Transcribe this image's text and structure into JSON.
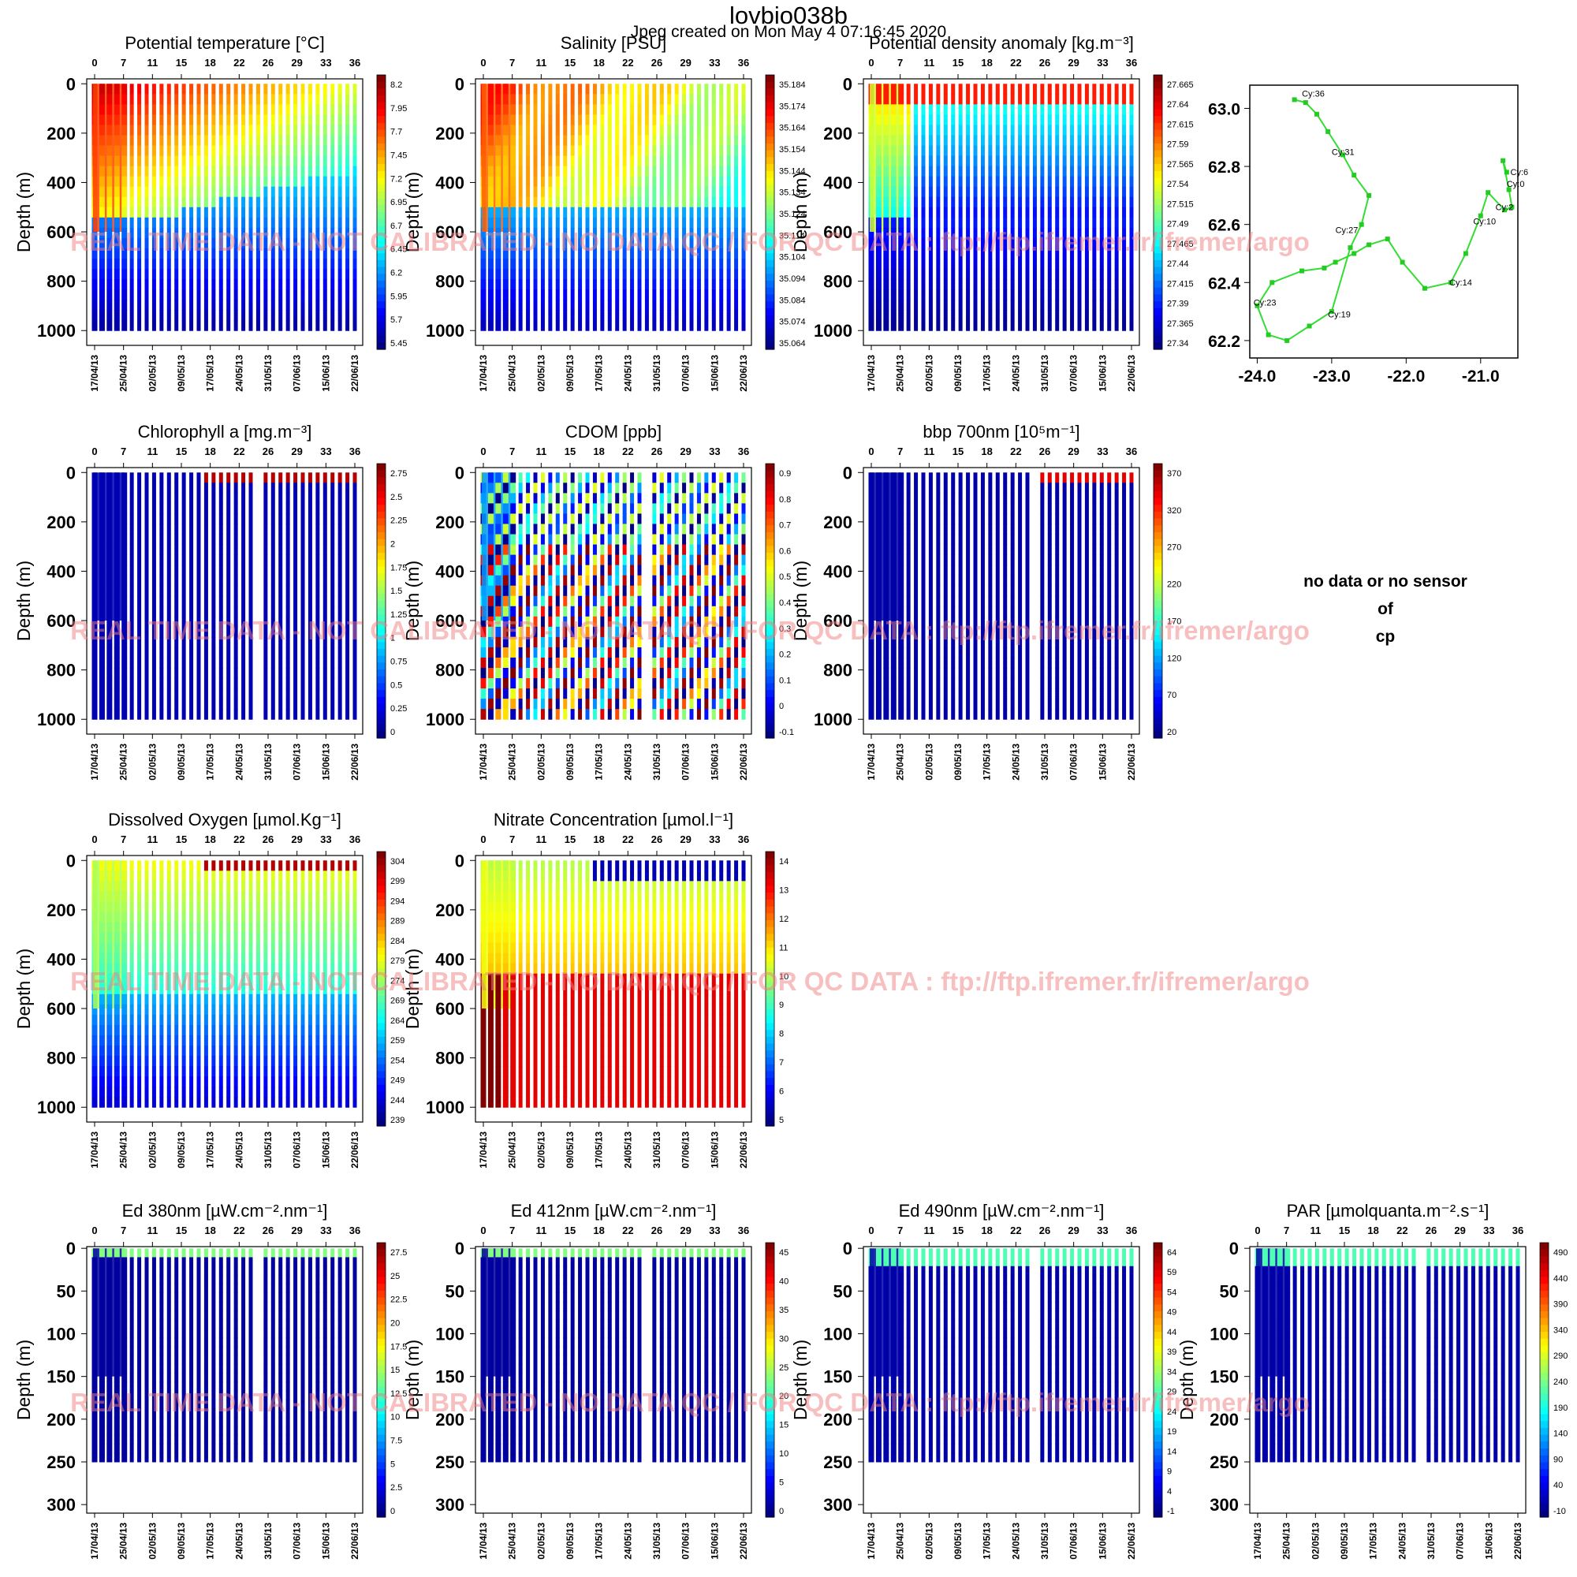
{
  "header": {
    "title": "lovbio038b",
    "subtitle": "Jpeg created on  Mon May  4 07:16:45 2020"
  },
  "watermark": "REAL TIME DATA - NOT CALIBRATED - NO DATA QC  /  FOR QC DATA : ftp://ftp.ifremer.fr/ifremer/argo",
  "no_data": {
    "lines": [
      "no data or no sensor",
      "of",
      "cp"
    ]
  },
  "chart_data": [
    {
      "id": "temp",
      "type": "heatmap",
      "title": "Potential temperature [°C]",
      "ylabel": "Depth (m)",
      "ylim": [
        1060,
        -20
      ],
      "yticks": [
        "0",
        "200",
        "400",
        "600",
        "800",
        "1000"
      ],
      "top_ticks": [
        "0",
        "7",
        "11",
        "15",
        "18",
        "22",
        "26",
        "29",
        "33",
        "36"
      ],
      "date_ticks": [
        "17/04/13",
        "25/04/13",
        "02/05/13",
        "09/05/13",
        "17/05/13",
        "24/05/13",
        "31/05/13",
        "07/06/13",
        "15/06/13",
        "22/06/13"
      ],
      "colorbar": [
        "8.2",
        "7.95",
        "7.7",
        "7.45",
        "7.2",
        "6.95",
        "6.7",
        "6.45",
        "6.2",
        "5.95",
        "5.7",
        "5.45"
      ]
    },
    {
      "id": "sal",
      "type": "heatmap",
      "title": "Salinity [PSU]",
      "ylabel": "Depth (m)",
      "ylim": [
        1060,
        -20
      ],
      "yticks": [
        "0",
        "200",
        "400",
        "600",
        "800",
        "1000"
      ],
      "top_ticks": [
        "0",
        "7",
        "11",
        "15",
        "18",
        "22",
        "26",
        "29",
        "33",
        "36"
      ],
      "date_ticks": [
        "17/04/13",
        "25/04/13",
        "02/05/13",
        "09/05/13",
        "17/05/13",
        "24/05/13",
        "31/05/13",
        "07/06/13",
        "15/06/13",
        "22/06/13"
      ],
      "colorbar": [
        "35.184",
        "35.174",
        "35.164",
        "35.154",
        "35.144",
        "35.134",
        "35.124",
        "35.114",
        "35.104",
        "35.094",
        "35.084",
        "35.074",
        "35.064"
      ]
    },
    {
      "id": "dens",
      "type": "heatmap",
      "title": "Potential density anomaly [kg.m⁻³]",
      "ylabel": "Depth (m)",
      "ylim": [
        1060,
        -20
      ],
      "yticks": [
        "0",
        "200",
        "400",
        "600",
        "800",
        "1000"
      ],
      "top_ticks": [
        "0",
        "7",
        "11",
        "15",
        "18",
        "22",
        "26",
        "29",
        "33",
        "36"
      ],
      "date_ticks": [
        "17/04/13",
        "25/04/13",
        "02/05/13",
        "09/05/13",
        "17/05/13",
        "24/05/13",
        "31/05/13",
        "07/06/13",
        "15/06/13",
        "22/06/13"
      ],
      "colorbar": [
        "27.665",
        "27.64",
        "27.615",
        "27.59",
        "27.565",
        "27.54",
        "27.515",
        "27.49",
        "27.465",
        "27.44",
        "27.415",
        "27.39",
        "27.365",
        "27.34"
      ]
    },
    {
      "id": "map",
      "type": "line",
      "xticks": [
        "-24.0",
        "-23.0",
        "-22.0",
        "-21.0"
      ],
      "yticks": [
        "63.0",
        "62.8",
        "62.6",
        "62.4",
        "62.2"
      ],
      "xlim": [
        -24.1,
        -20.5
      ],
      "ylim": [
        62.14,
        63.08
      ],
      "track_x": [
        -20.65,
        -20.7,
        -20.62,
        -20.58,
        -20.68,
        -20.9,
        -21.0,
        -21.2,
        -21.4,
        -21.75,
        -22.05,
        -22.25,
        -22.5,
        -22.7,
        -22.95,
        -23.1,
        -23.4,
        -23.8,
        -24.0,
        -23.85,
        -23.6,
        -23.3,
        -23.0,
        -22.75,
        -22.6,
        -22.5,
        -22.7,
        -22.85,
        -23.05,
        -23.2,
        -23.35,
        -23.5
      ],
      "track_y": [
        62.78,
        62.82,
        62.72,
        62.66,
        62.65,
        62.71,
        62.63,
        62.5,
        62.4,
        62.38,
        62.47,
        62.55,
        62.53,
        62.5,
        62.47,
        62.45,
        62.44,
        62.4,
        62.32,
        62.22,
        62.2,
        62.25,
        62.3,
        62.52,
        62.6,
        62.7,
        62.77,
        62.84,
        62.92,
        62.98,
        63.02,
        63.03
      ],
      "cycle_labels": [
        {
          "text": "Cy:36",
          "x": -23.4,
          "y": 63.04
        },
        {
          "text": "Cy:31",
          "x": -23.0,
          "y": 62.84
        },
        {
          "text": "Cy:27",
          "x": -22.95,
          "y": 62.57
        },
        {
          "text": "Cy:23",
          "x": -24.05,
          "y": 62.32
        },
        {
          "text": "Cy:19",
          "x": -23.05,
          "y": 62.28
        },
        {
          "text": "Cy:14",
          "x": -21.42,
          "y": 62.39
        },
        {
          "text": "Cy:10",
          "x": -21.1,
          "y": 62.6
        },
        {
          "text": "Cy:2",
          "x": -20.8,
          "y": 62.65
        },
        {
          "text": "Cy:0",
          "x": -20.65,
          "y": 62.73
        },
        {
          "text": "Cy:6",
          "x": -20.6,
          "y": 62.77
        }
      ]
    },
    {
      "id": "chla",
      "type": "heatmap",
      "title": "Chlorophyll a [mg.m⁻³]",
      "ylabel": "Depth (m)",
      "ylim": [
        1060,
        -20
      ],
      "yticks": [
        "0",
        "200",
        "400",
        "600",
        "800",
        "1000"
      ],
      "top_ticks": [
        "0",
        "7",
        "11",
        "15",
        "18",
        "22",
        "26",
        "29",
        "33",
        "36"
      ],
      "date_ticks": [
        "17/04/13",
        "25/04/13",
        "02/05/13",
        "09/05/13",
        "17/05/13",
        "24/05/13",
        "31/05/13",
        "07/06/13",
        "15/06/13",
        "22/06/13"
      ],
      "colorbar": [
        "2.75",
        "2.5",
        "2.25",
        "2",
        "1.75",
        "1.5",
        "1.25",
        "1",
        "0.75",
        "0.5",
        "0.25",
        "0"
      ]
    },
    {
      "id": "cdom",
      "type": "heatmap",
      "title": "CDOM  [ppb]",
      "ylabel": "Depth (m)",
      "ylim": [
        1060,
        -20
      ],
      "yticks": [
        "0",
        "200",
        "400",
        "600",
        "800",
        "1000"
      ],
      "top_ticks": [
        "0",
        "7",
        "11",
        "15",
        "18",
        "22",
        "26",
        "29",
        "33",
        "36"
      ],
      "date_ticks": [
        "17/04/13",
        "25/04/13",
        "02/05/13",
        "09/05/13",
        "17/05/13",
        "24/05/13",
        "31/05/13",
        "07/06/13",
        "15/06/13",
        "22/06/13"
      ],
      "colorbar": [
        "0.9",
        "0.8",
        "0.7",
        "0.6",
        "0.5",
        "0.4",
        "0.3",
        "0.2",
        "0.1",
        "0",
        "-0.1"
      ]
    },
    {
      "id": "bbp",
      "type": "heatmap",
      "title": "bbp 700nm [10⁵m⁻¹]",
      "ylabel": "Depth (m)",
      "ylim": [
        1060,
        -20
      ],
      "yticks": [
        "0",
        "200",
        "400",
        "600",
        "800",
        "1000"
      ],
      "top_ticks": [
        "0",
        "7",
        "11",
        "15",
        "18",
        "22",
        "26",
        "29",
        "33",
        "36"
      ],
      "date_ticks": [
        "17/04/13",
        "25/04/13",
        "02/05/13",
        "09/05/13",
        "17/05/13",
        "24/05/13",
        "31/05/13",
        "07/06/13",
        "15/06/13",
        "22/06/13"
      ],
      "colorbar": [
        "370",
        "320",
        "270",
        "220",
        "170",
        "120",
        "70",
        "20"
      ]
    },
    {
      "id": "oxy",
      "type": "heatmap",
      "title": "Dissolved Oxygen [µmol.Kg⁻¹]",
      "ylabel": "Depth (m)",
      "ylim": [
        1060,
        -20
      ],
      "yticks": [
        "0",
        "200",
        "400",
        "600",
        "800",
        "1000"
      ],
      "top_ticks": [
        "0",
        "7",
        "11",
        "15",
        "18",
        "22",
        "26",
        "29",
        "33",
        "36"
      ],
      "date_ticks": [
        "17/04/13",
        "25/04/13",
        "02/05/13",
        "09/05/13",
        "17/05/13",
        "24/05/13",
        "31/05/13",
        "07/06/13",
        "15/06/13",
        "22/06/13"
      ],
      "colorbar": [
        "304",
        "299",
        "294",
        "289",
        "284",
        "279",
        "274",
        "269",
        "264",
        "259",
        "254",
        "249",
        "244",
        "239"
      ]
    },
    {
      "id": "nitr",
      "type": "heatmap",
      "title": "Nitrate Concentration [µmol.l⁻¹]",
      "ylabel": "Depth (m)",
      "ylim": [
        1060,
        -20
      ],
      "yticks": [
        "0",
        "200",
        "400",
        "600",
        "800",
        "1000"
      ],
      "top_ticks": [
        "0",
        "7",
        "11",
        "15",
        "18",
        "22",
        "26",
        "29",
        "33",
        "36"
      ],
      "date_ticks": [
        "17/04/13",
        "25/04/13",
        "02/05/13",
        "09/05/13",
        "17/05/13",
        "24/05/13",
        "31/05/13",
        "07/06/13",
        "15/06/13",
        "22/06/13"
      ],
      "colorbar": [
        "14",
        "13",
        "12",
        "11",
        "10",
        "9",
        "8",
        "7",
        "6",
        "5"
      ]
    },
    {
      "id": "ed380",
      "type": "heatmap",
      "title": "Ed 380nm [µW.cm⁻².nm⁻¹]",
      "ylabel": "Depth (m)",
      "ylim": [
        310,
        -2
      ],
      "yticks": [
        "0",
        "50",
        "100",
        "150",
        "200",
        "250",
        "300"
      ],
      "top_ticks": [
        "0",
        "7",
        "11",
        "15",
        "18",
        "22",
        "26",
        "29",
        "33",
        "36"
      ],
      "date_ticks": [
        "17/04/13",
        "25/04/13",
        "02/05/13",
        "09/05/13",
        "17/05/13",
        "24/05/13",
        "31/05/13",
        "07/06/13",
        "15/06/13",
        "22/06/13"
      ],
      "colorbar": [
        "27.5",
        "25",
        "22.5",
        "20",
        "17.5",
        "15",
        "12.5",
        "10",
        "7.5",
        "5",
        "2.5",
        "0"
      ]
    },
    {
      "id": "ed412",
      "type": "heatmap",
      "title": "Ed 412nm [µW.cm⁻².nm⁻¹]",
      "ylabel": "Depth (m)",
      "ylim": [
        310,
        -2
      ],
      "yticks": [
        "0",
        "50",
        "100",
        "150",
        "200",
        "250",
        "300"
      ],
      "top_ticks": [
        "0",
        "7",
        "11",
        "15",
        "18",
        "22",
        "26",
        "29",
        "33",
        "36"
      ],
      "date_ticks": [
        "17/04/13",
        "25/04/13",
        "02/05/13",
        "09/05/13",
        "17/05/13",
        "24/05/13",
        "31/05/13",
        "07/06/13",
        "15/06/13",
        "22/06/13"
      ],
      "colorbar": [
        "45",
        "40",
        "35",
        "30",
        "25",
        "20",
        "15",
        "10",
        "5",
        "0"
      ]
    },
    {
      "id": "ed490",
      "type": "heatmap",
      "title": "Ed 490nm [µW.cm⁻².nm⁻¹]",
      "ylabel": "Depth (m)",
      "ylim": [
        310,
        -2
      ],
      "yticks": [
        "0",
        "50",
        "100",
        "150",
        "200",
        "250",
        "300"
      ],
      "top_ticks": [
        "0",
        "7",
        "11",
        "15",
        "18",
        "22",
        "26",
        "29",
        "33",
        "36"
      ],
      "date_ticks": [
        "17/04/13",
        "25/04/13",
        "02/05/13",
        "09/05/13",
        "17/05/13",
        "24/05/13",
        "31/05/13",
        "07/06/13",
        "15/06/13",
        "22/06/13"
      ],
      "colorbar": [
        "64",
        "59",
        "54",
        "49",
        "44",
        "39",
        "34",
        "29",
        "24",
        "19",
        "14",
        "9",
        "4",
        "-1"
      ]
    },
    {
      "id": "par",
      "type": "heatmap",
      "title": "PAR [µmolquanta.m⁻².s⁻¹]",
      "ylabel": "Depth (m)",
      "ylim": [
        310,
        -2
      ],
      "yticks": [
        "0",
        "50",
        "100",
        "150",
        "200",
        "250",
        "300"
      ],
      "top_ticks": [
        "0",
        "7",
        "11",
        "15",
        "18",
        "22",
        "26",
        "29",
        "33",
        "36"
      ],
      "date_ticks": [
        "17/04/13",
        "25/04/13",
        "02/05/13",
        "09/05/13",
        "17/05/13",
        "24/05/13",
        "31/05/13",
        "07/06/13",
        "15/06/13",
        "22/06/13"
      ],
      "colorbar": [
        "490",
        "440",
        "390",
        "340",
        "290",
        "240",
        "190",
        "140",
        "90",
        "40",
        "-10"
      ]
    }
  ]
}
